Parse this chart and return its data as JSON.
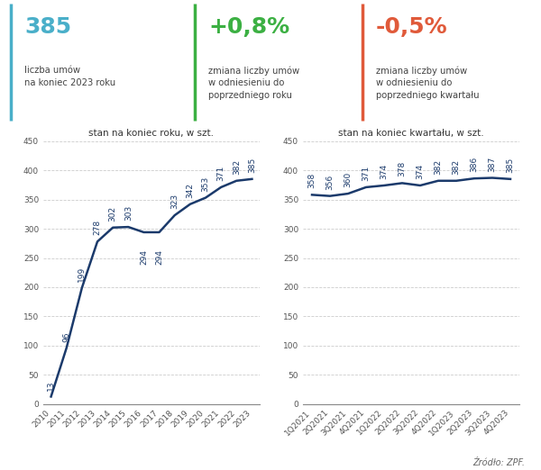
{
  "stat1_value": "385",
  "stat1_label": "liczba umów\nna koniec 2023 roku",
  "stat1_color": "#4aafc9",
  "stat2_value": "+0,8%",
  "stat2_label": "zmiana liczby umów\nw odniesieniu do\npoprzedniego roku",
  "stat2_color": "#3cb043",
  "stat3_value": "-0,5%",
  "stat3_label": "zmiana liczby umów\nw odniesieniu do\npoprzedniego kwartału",
  "stat3_color": "#e05a3a",
  "chart1_title": "stan na koniec roku, w szt.",
  "chart1_x": [
    "2010",
    "2011",
    "2012",
    "2013",
    "2014",
    "2015",
    "2016",
    "2017",
    "2018",
    "2019",
    "2020",
    "2021",
    "2022",
    "2023"
  ],
  "chart1_y": [
    13,
    96,
    199,
    278,
    302,
    303,
    294,
    294,
    323,
    342,
    353,
    371,
    382,
    385
  ],
  "chart1_ylim": [
    0,
    450
  ],
  "chart1_yticks": [
    0,
    50,
    100,
    150,
    200,
    250,
    300,
    350,
    400,
    450
  ],
  "chart2_title": "stan na koniec kwartału, w szt.",
  "chart2_x": [
    "1Q2021",
    "2Q2021",
    "3Q2021",
    "4Q2021",
    "1Q2022",
    "2Q2022",
    "3Q2022",
    "4Q2022",
    "1Q2023",
    "2Q2023",
    "3Q2023",
    "4Q2023"
  ],
  "chart2_y": [
    358,
    356,
    360,
    371,
    374,
    378,
    374,
    382,
    382,
    386,
    387,
    385
  ],
  "chart2_ylim": [
    0,
    450
  ],
  "chart2_yticks": [
    0,
    50,
    100,
    150,
    200,
    250,
    300,
    350,
    400,
    450
  ],
  "line_color": "#1b3a6b",
  "line_width": 1.8,
  "bg_color": "#ffffff",
  "grid_color": "#cccccc",
  "source_text": "Źródło: ZPF.",
  "label_fontsize": 6.5,
  "tick_fontsize": 6.5,
  "title_fontsize": 7.5
}
